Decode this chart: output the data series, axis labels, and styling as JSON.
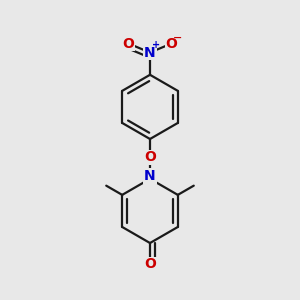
{
  "bg_color": "#e8e8e8",
  "bond_color": "#1a1a1a",
  "bond_width": 1.6,
  "atom_colors": {
    "O": "#cc0000",
    "N": "#0000cc",
    "C": "#1a1a1a"
  },
  "font_size_atom": 10,
  "font_size_charge": 7,
  "figsize": [
    3.0,
    3.0
  ],
  "dpi": 100
}
